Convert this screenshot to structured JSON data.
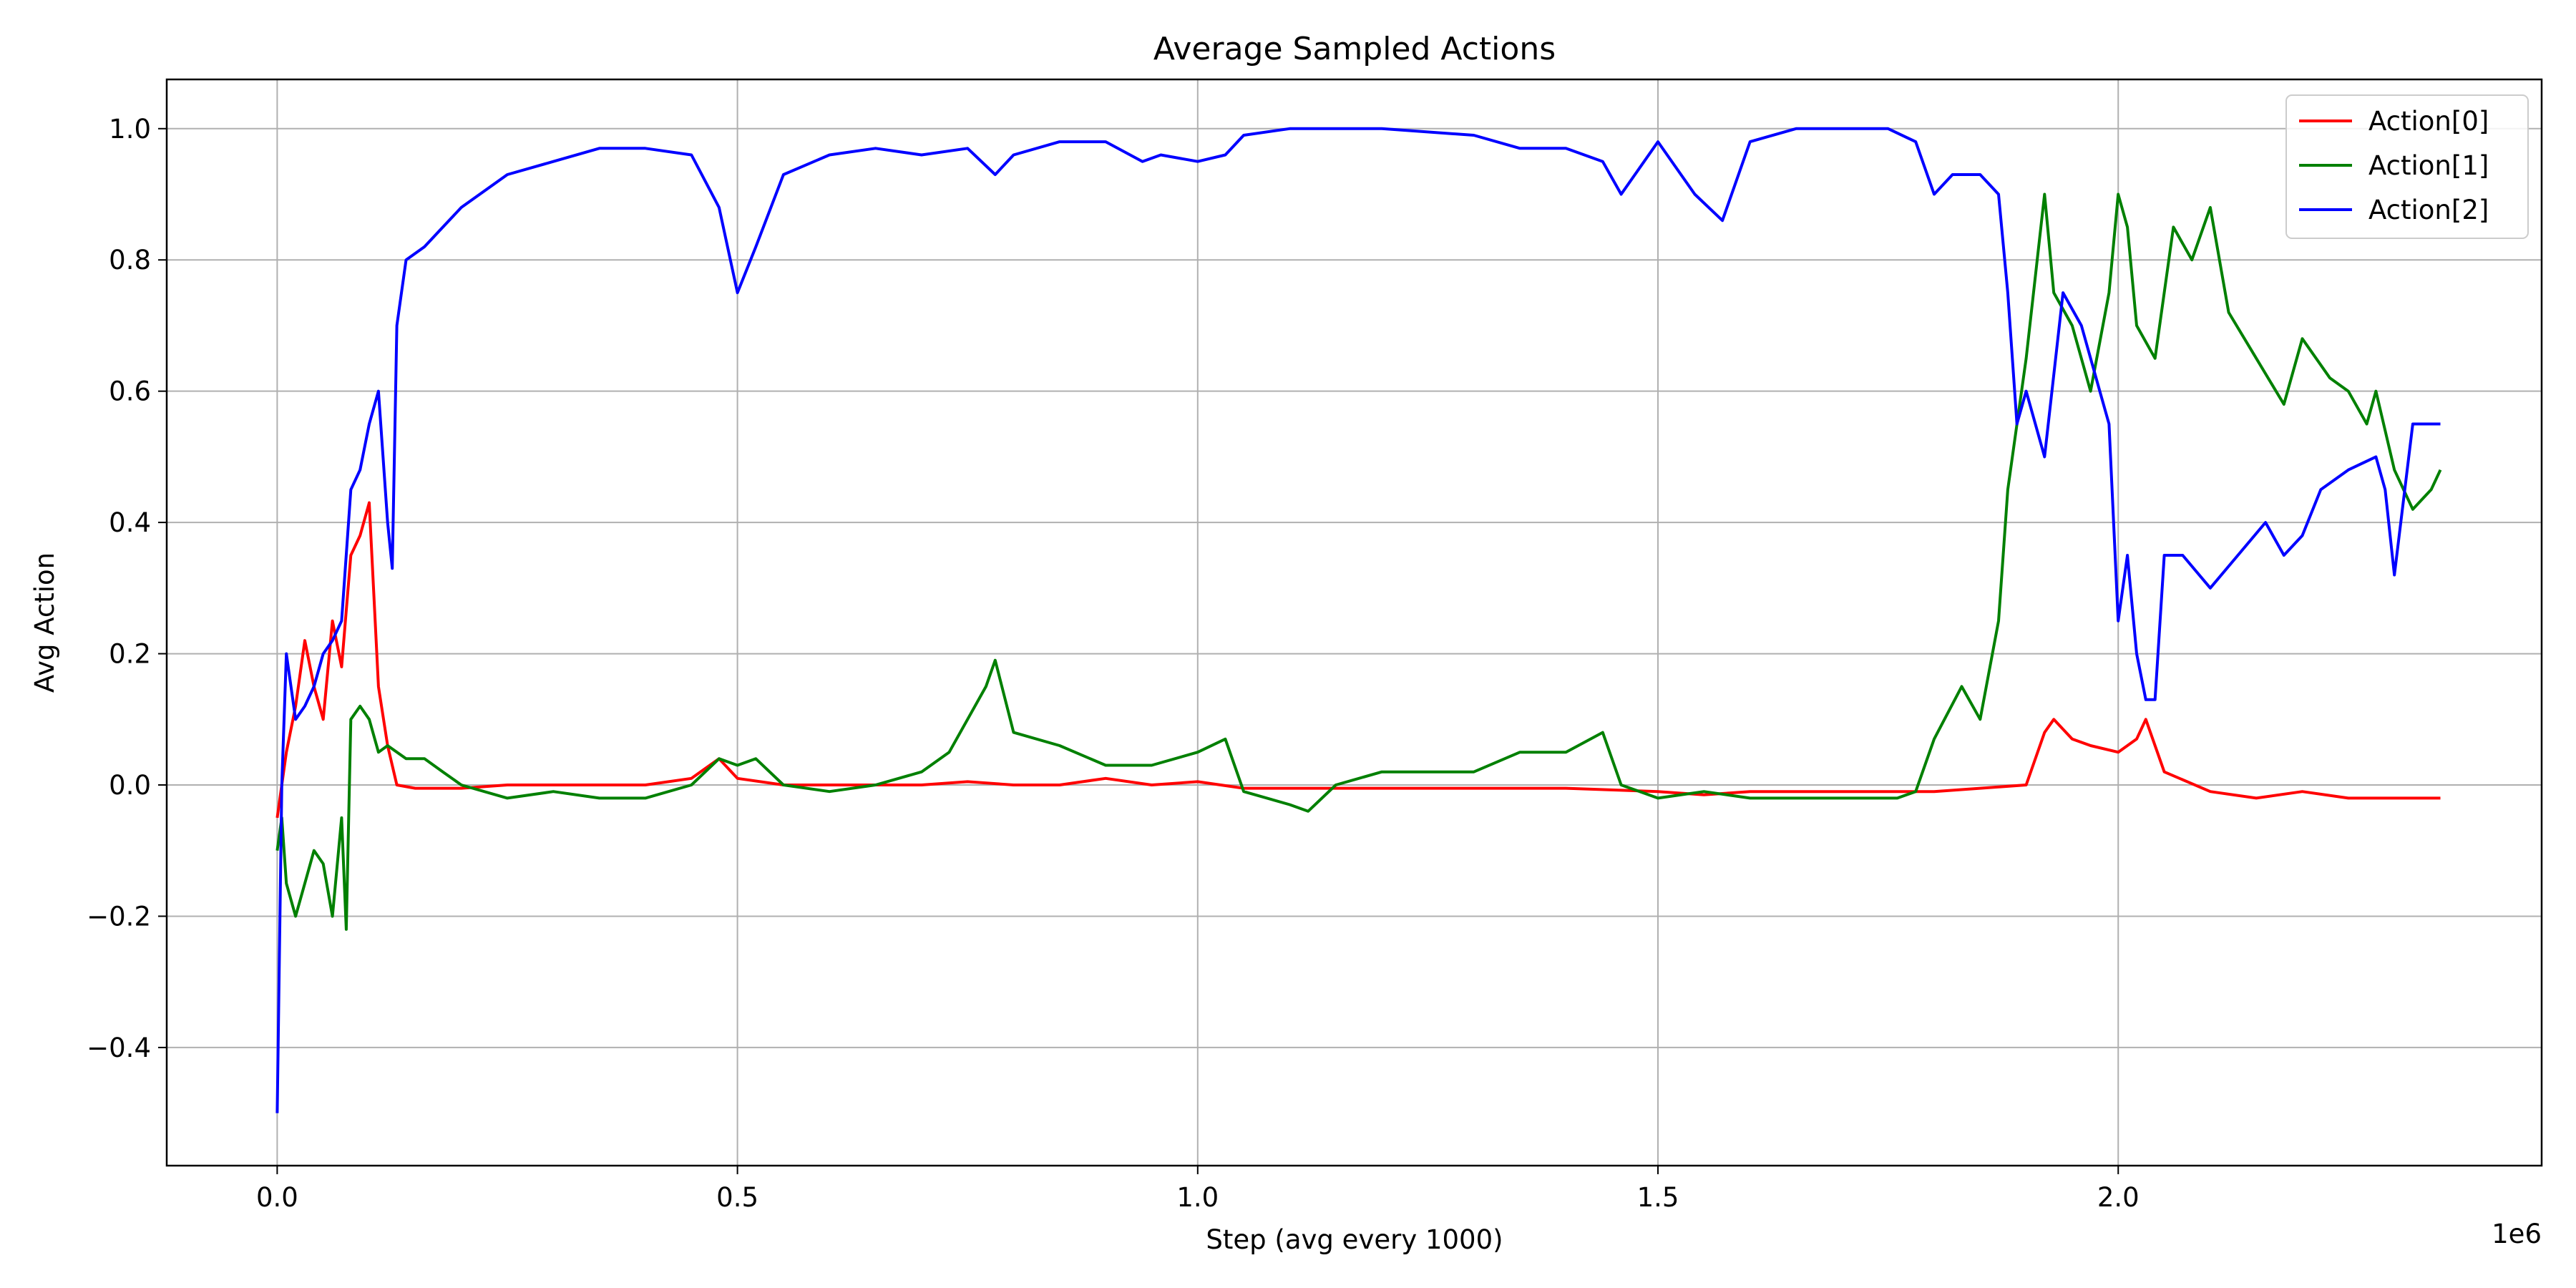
{
  "chart_data": {
    "type": "line",
    "title": "Average Sampled Actions",
    "xlabel": "Step (avg every 1000)",
    "ylabel": "Avg Action",
    "x_offset_label": "1e6",
    "xlim": [
      -0.12,
      2.46
    ],
    "ylim": [
      -0.58,
      1.075
    ],
    "xticks": [
      0.0,
      0.5,
      1.0,
      1.5,
      2.0
    ],
    "xtick_labels": [
      "0.0",
      "0.5",
      "1.0",
      "1.5",
      "2.0"
    ],
    "yticks": [
      -0.4,
      -0.2,
      0.0,
      0.2,
      0.4,
      0.6,
      0.8,
      1.0
    ],
    "ytick_labels": [
      "−0.4",
      "−0.2",
      "0.0",
      "0.2",
      "0.4",
      "0.6",
      "0.8",
      "1.0"
    ],
    "grid": true,
    "legend_position": "top-right",
    "series": [
      {
        "name": "Action[0]",
        "color": "#ff0000",
        "x": [
          0.0,
          0.01,
          0.02,
          0.03,
          0.04,
          0.05,
          0.06,
          0.07,
          0.08,
          0.09,
          0.1,
          0.11,
          0.12,
          0.13,
          0.15,
          0.2,
          0.25,
          0.3,
          0.35,
          0.4,
          0.45,
          0.48,
          0.5,
          0.55,
          0.6,
          0.7,
          0.75,
          0.8,
          0.85,
          0.9,
          0.95,
          1.0,
          1.05,
          1.1,
          1.2,
          1.3,
          1.4,
          1.5,
          1.55,
          1.6,
          1.7,
          1.8,
          1.85,
          1.9,
          1.92,
          1.93,
          1.95,
          1.97,
          2.0,
          2.02,
          2.03,
          2.05,
          2.1,
          2.15,
          2.2,
          2.25,
          2.3,
          2.35
        ],
        "y": [
          -0.05,
          0.05,
          0.12,
          0.22,
          0.15,
          0.1,
          0.25,
          0.18,
          0.35,
          0.38,
          0.43,
          0.15,
          0.06,
          0.0,
          -0.005,
          -0.005,
          0.0,
          0.0,
          0.0,
          0.0,
          0.01,
          0.04,
          0.01,
          0.0,
          0.0,
          0.0,
          0.005,
          0.0,
          0.0,
          0.01,
          0.0,
          0.005,
          -0.005,
          -0.005,
          -0.005,
          -0.005,
          -0.005,
          -0.01,
          -0.015,
          -0.01,
          -0.01,
          -0.01,
          -0.005,
          0.0,
          0.08,
          0.1,
          0.07,
          0.06,
          0.05,
          0.07,
          0.1,
          0.02,
          -0.01,
          -0.02,
          -0.01,
          -0.02,
          -0.02,
          -0.02
        ]
      },
      {
        "name": "Action[1]",
        "color": "#008000",
        "x": [
          0.0,
          0.005,
          0.01,
          0.02,
          0.03,
          0.04,
          0.05,
          0.06,
          0.07,
          0.075,
          0.08,
          0.09,
          0.1,
          0.11,
          0.12,
          0.14,
          0.16,
          0.18,
          0.2,
          0.25,
          0.3,
          0.35,
          0.4,
          0.45,
          0.48,
          0.5,
          0.52,
          0.55,
          0.6,
          0.65,
          0.7,
          0.73,
          0.75,
          0.77,
          0.78,
          0.8,
          0.85,
          0.9,
          0.95,
          1.0,
          1.03,
          1.05,
          1.1,
          1.12,
          1.15,
          1.2,
          1.3,
          1.35,
          1.4,
          1.44,
          1.46,
          1.5,
          1.55,
          1.6,
          1.7,
          1.76,
          1.78,
          1.8,
          1.83,
          1.85,
          1.87,
          1.88,
          1.9,
          1.92,
          1.93,
          1.95,
          1.97,
          1.99,
          2.0,
          2.01,
          2.02,
          2.04,
          2.06,
          2.08,
          2.1,
          2.12,
          2.15,
          2.18,
          2.2,
          2.23,
          2.25,
          2.27,
          2.28,
          2.3,
          2.32,
          2.34,
          2.35
        ],
        "y": [
          -0.1,
          -0.05,
          -0.15,
          -0.2,
          -0.15,
          -0.1,
          -0.12,
          -0.2,
          -0.05,
          -0.22,
          0.1,
          0.12,
          0.1,
          0.05,
          0.06,
          0.04,
          0.04,
          0.02,
          0.0,
          -0.02,
          -0.01,
          -0.02,
          -0.02,
          0.0,
          0.04,
          0.03,
          0.04,
          0.0,
          -0.01,
          0.0,
          0.02,
          0.05,
          0.1,
          0.15,
          0.19,
          0.08,
          0.06,
          0.03,
          0.03,
          0.05,
          0.07,
          -0.01,
          -0.03,
          -0.04,
          0.0,
          0.02,
          0.02,
          0.05,
          0.05,
          0.08,
          0.0,
          -0.02,
          -0.01,
          -0.02,
          -0.02,
          -0.02,
          -0.01,
          0.07,
          0.15,
          0.1,
          0.25,
          0.45,
          0.65,
          0.9,
          0.75,
          0.7,
          0.6,
          0.75,
          0.9,
          0.85,
          0.7,
          0.65,
          0.85,
          0.8,
          0.88,
          0.72,
          0.65,
          0.58,
          0.68,
          0.62,
          0.6,
          0.55,
          0.6,
          0.48,
          0.42,
          0.45,
          0.48
        ]
      },
      {
        "name": "Action[2]",
        "color": "#0000ff",
        "x": [
          0.0,
          0.005,
          0.01,
          0.02,
          0.03,
          0.04,
          0.05,
          0.06,
          0.07,
          0.08,
          0.09,
          0.1,
          0.11,
          0.12,
          0.125,
          0.13,
          0.14,
          0.16,
          0.18,
          0.2,
          0.25,
          0.3,
          0.35,
          0.4,
          0.45,
          0.48,
          0.5,
          0.52,
          0.55,
          0.6,
          0.65,
          0.7,
          0.75,
          0.78,
          0.8,
          0.85,
          0.9,
          0.94,
          0.96,
          1.0,
          1.03,
          1.05,
          1.1,
          1.2,
          1.3,
          1.35,
          1.4,
          1.44,
          1.46,
          1.5,
          1.54,
          1.57,
          1.6,
          1.65,
          1.7,
          1.75,
          1.78,
          1.8,
          1.82,
          1.85,
          1.87,
          1.88,
          1.89,
          1.9,
          1.92,
          1.94,
          1.96,
          1.98,
          1.99,
          2.0,
          2.01,
          2.02,
          2.03,
          2.04,
          2.05,
          2.07,
          2.1,
          2.13,
          2.16,
          2.18,
          2.2,
          2.22,
          2.25,
          2.28,
          2.29,
          2.3,
          2.32,
          2.34,
          2.35
        ],
        "y": [
          -0.5,
          0.0,
          0.2,
          0.1,
          0.12,
          0.15,
          0.2,
          0.22,
          0.25,
          0.45,
          0.48,
          0.55,
          0.6,
          0.4,
          0.33,
          0.7,
          0.8,
          0.82,
          0.85,
          0.88,
          0.93,
          0.95,
          0.97,
          0.97,
          0.96,
          0.88,
          0.75,
          0.82,
          0.93,
          0.96,
          0.97,
          0.96,
          0.97,
          0.93,
          0.96,
          0.98,
          0.98,
          0.95,
          0.96,
          0.95,
          0.96,
          0.99,
          1.0,
          1.0,
          0.99,
          0.97,
          0.97,
          0.95,
          0.9,
          0.98,
          0.9,
          0.86,
          0.98,
          1.0,
          1.0,
          1.0,
          0.98,
          0.9,
          0.93,
          0.93,
          0.9,
          0.75,
          0.55,
          0.6,
          0.5,
          0.75,
          0.7,
          0.6,
          0.55,
          0.25,
          0.35,
          0.2,
          0.13,
          0.13,
          0.35,
          0.35,
          0.3,
          0.35,
          0.4,
          0.35,
          0.38,
          0.45,
          0.48,
          0.5,
          0.45,
          0.32,
          0.55,
          0.55,
          0.55
        ]
      }
    ]
  }
}
